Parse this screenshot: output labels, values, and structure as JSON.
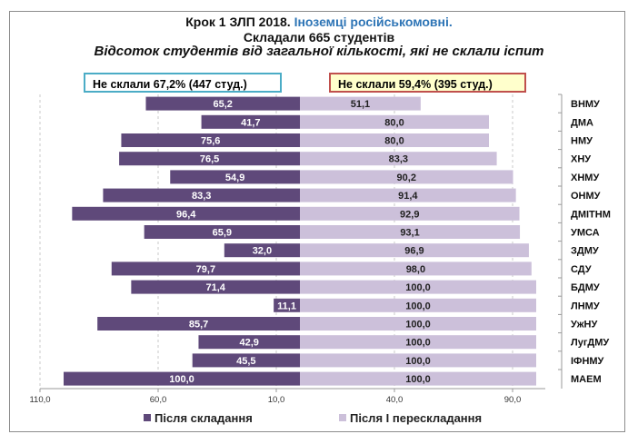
{
  "chart_data": {
    "type": "bar",
    "orientation": "horizontal-butterfly",
    "title": {
      "line1_prefix": "Крок 1 ЗЛП 2018.",
      "line1_highlight": "Іноземці російськомовні.",
      "line2": "Складали 665 студентів",
      "subtitle": "Відсоток студентів від загальної кількості, які не склали іспит"
    },
    "annotations": {
      "left": "Не склали 67,2% (447 студ.)",
      "right": "Не склали  59,4% (395 студ.)"
    },
    "categories": [
      "ВНМУ",
      "ДМА",
      "НМУ",
      "ХНУ",
      "ХНМУ",
      "ОНМУ",
      "ДМІТНМ",
      "УМСА",
      "ЗДМУ",
      "СДУ",
      "БДМУ",
      "ЛНМУ",
      "УжНУ",
      "ЛугДМУ",
      "ІФНМУ",
      "МАЕМ"
    ],
    "series": [
      {
        "name": "Після складання",
        "side": "left",
        "color": "#5f497a",
        "values": [
          65.2,
          41.7,
          75.6,
          76.5,
          54.9,
          83.3,
          96.4,
          65.9,
          32.0,
          79.7,
          71.4,
          11.1,
          85.7,
          42.9,
          45.5,
          100.0
        ]
      },
      {
        "name": "Після І перескладання",
        "side": "right",
        "color": "#ccc0da",
        "values": [
          51.1,
          80.0,
          80.0,
          83.3,
          90.2,
          91.4,
          92.9,
          93.1,
          96.9,
          98.0,
          100.0,
          100.0,
          100.0,
          100.0,
          100.0,
          100.0
        ]
      }
    ],
    "xlim": [
      -110,
      100
    ],
    "xticks": [
      -110,
      -60,
      -10,
      40,
      90
    ],
    "xtick_labels": [
      "110,0",
      "60,0",
      "10,0",
      "40,0",
      "90,0"
    ],
    "grid": "vertical dashed",
    "legend": "bottom"
  }
}
